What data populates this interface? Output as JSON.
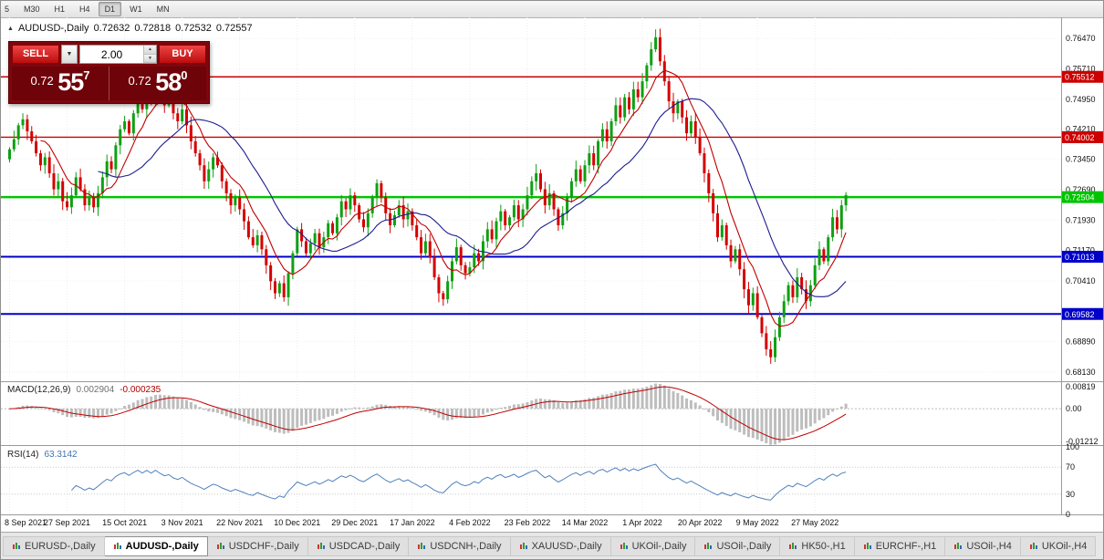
{
  "toolbar": {
    "timeframes": [
      {
        "label": "5",
        "active": false
      },
      {
        "label": "M30",
        "active": false
      },
      {
        "label": "H1",
        "active": false
      },
      {
        "label": "H4",
        "active": false
      },
      {
        "label": "D1",
        "active": true
      },
      {
        "label": "W1",
        "active": false
      },
      {
        "label": "MN",
        "active": false
      }
    ]
  },
  "header": {
    "symbol_label": "AUDUSD-,Daily",
    "open": "0.72632",
    "high": "0.72818",
    "low": "0.72532",
    "close": "0.72557"
  },
  "icons": {
    "header_arrow": "▲",
    "dropdown": "▼",
    "spin_up": "▲",
    "spin_down": "▼"
  },
  "trade_panel": {
    "sell_label": "SELL",
    "buy_label": "BUY",
    "volume": "2.00",
    "sell_price": {
      "prefix": "0.72",
      "pips": "55",
      "frac": "7"
    },
    "buy_price": {
      "prefix": "0.72",
      "pips": "58",
      "frac": "0"
    }
  },
  "tabs": [
    {
      "label": "EURUSD-,Daily",
      "active": false
    },
    {
      "label": "AUDUSD-,Daily",
      "active": true
    },
    {
      "label": "USDCHF-,Daily",
      "active": false
    },
    {
      "label": "USDCAD-,Daily",
      "active": false
    },
    {
      "label": "USDCNH-,Daily",
      "active": false
    },
    {
      "label": "XAUUSD-,Daily",
      "active": false
    },
    {
      "label": "UKOil-,Daily",
      "active": false
    },
    {
      "label": "USOil-,Daily",
      "active": false
    },
    {
      "label": "HK50-,H1",
      "active": false
    },
    {
      "label": "EURCHF-,H1",
      "active": false
    },
    {
      "label": "USOil-,H4",
      "active": false
    },
    {
      "label": "UKOil-,H4",
      "active": false
    }
  ],
  "chart_data": {
    "type": "candlestick+indicators",
    "symbol": "AUDUSD-,Daily",
    "ylim": [
      0.679,
      0.77
    ],
    "price_ticks": [
      "0.76470",
      "0.75710",
      "0.74950",
      "0.74210",
      "0.73450",
      "0.72690",
      "0.71930",
      "0.71170",
      "0.70410",
      "0.69650",
      "0.68890",
      "0.68130"
    ],
    "hlines": [
      {
        "price": 0.75512,
        "color": "#cc0000",
        "width": 1.4,
        "label": "0.75512"
      },
      {
        "price": 0.74002,
        "color": "#cc0000",
        "width": 1.4,
        "label": "0.74002"
      },
      {
        "price": 0.72504,
        "color": "#00c400",
        "width": 2.4,
        "label": "0.72504"
      },
      {
        "price": 0.71013,
        "color": "#0000c8",
        "width": 2.0,
        "label": "0.71013"
      },
      {
        "price": 0.69582,
        "color": "#0000c8",
        "width": 2.0,
        "label": "0.69582"
      }
    ],
    "x_labels": [
      "8 Sep 2021",
      "27 Sep 2021",
      "15 Oct 2021",
      "3 Nov 2021",
      "22 Nov 2021",
      "10 Dec 2021",
      "29 Dec 2021",
      "17 Jan 2022",
      "4 Feb 2022",
      "23 Feb 2022",
      "14 Mar 2022",
      "1 Apr 2022",
      "20 Apr 2022",
      "9 May 2022",
      "27 May 2022"
    ],
    "label_every": 13,
    "first_open": 0.7345,
    "closes": [
      0.737,
      0.7395,
      0.743,
      0.7445,
      0.7415,
      0.739,
      0.736,
      0.733,
      0.735,
      0.731,
      0.727,
      0.729,
      0.724,
      0.7225,
      0.7255,
      0.73,
      0.727,
      0.723,
      0.725,
      0.7225,
      0.726,
      0.73,
      0.734,
      0.732,
      0.738,
      0.742,
      0.744,
      0.741,
      0.746,
      0.75,
      0.747,
      0.752,
      0.749,
      0.7545,
      0.751,
      0.748,
      0.75,
      0.746,
      0.744,
      0.747,
      0.743,
      0.739,
      0.736,
      0.733,
      0.729,
      0.732,
      0.735,
      0.733,
      0.729,
      0.726,
      0.723,
      0.725,
      0.722,
      0.719,
      0.715,
      0.713,
      0.7155,
      0.712,
      0.708,
      0.704,
      0.701,
      0.7035,
      0.7,
      0.706,
      0.711,
      0.717,
      0.714,
      0.711,
      0.7135,
      0.716,
      0.7125,
      0.715,
      0.7185,
      0.716,
      0.72,
      0.724,
      0.722,
      0.7255,
      0.723,
      0.7195,
      0.7175,
      0.721,
      0.725,
      0.7285,
      0.725,
      0.721,
      0.718,
      0.7205,
      0.723,
      0.7195,
      0.7215,
      0.718,
      0.715,
      0.711,
      0.714,
      0.71,
      0.705,
      0.701,
      0.6995,
      0.704,
      0.709,
      0.7125,
      0.708,
      0.706,
      0.7075,
      0.711,
      0.709,
      0.714,
      0.717,
      0.7145,
      0.719,
      0.7215,
      0.718,
      0.72,
      0.723,
      0.7195,
      0.722,
      0.7255,
      0.729,
      0.731,
      0.727,
      0.723,
      0.726,
      0.722,
      0.718,
      0.721,
      0.725,
      0.729,
      0.732,
      0.729,
      0.733,
      0.736,
      0.733,
      0.739,
      0.742,
      0.739,
      0.744,
      0.748,
      0.745,
      0.75,
      0.747,
      0.752,
      0.75,
      0.754,
      0.758,
      0.762,
      0.765,
      0.759,
      0.754,
      0.749,
      0.746,
      0.749,
      0.745,
      0.741,
      0.744,
      0.74,
      0.736,
      0.731,
      0.726,
      0.721,
      0.715,
      0.718,
      0.713,
      0.709,
      0.712,
      0.707,
      0.702,
      0.698,
      0.701,
      0.695,
      0.691,
      0.687,
      0.685,
      0.69,
      0.695,
      0.699,
      0.703,
      0.7,
      0.705,
      0.702,
      0.699,
      0.703,
      0.708,
      0.712,
      0.709,
      0.715,
      0.72,
      0.717,
      0.723,
      0.72557
    ],
    "up_color": "#0ea012",
    "down_color": "#d40000",
    "ma_fast": {
      "period": 8,
      "color": "#c00000"
    },
    "ma_slow": {
      "period": 21,
      "color": "#1c1c8e"
    },
    "macd": {
      "label": "MACD(12,26,9)",
      "value": "0.002904",
      "signal_value": "-0.000235",
      "ticks": [
        "0.00819",
        "0.00",
        "-0.01212"
      ],
      "range": [
        -0.0135,
        0.0095
      ],
      "hist_color": "#bdbdbd",
      "signal_color": "#c00000"
    },
    "rsi": {
      "label": "RSI(14)",
      "value": "63.3142",
      "ticks": [
        "100",
        "70",
        "30",
        "0"
      ],
      "levels": [
        70,
        30
      ],
      "range": [
        0,
        100
      ],
      "color": "#4f81bd"
    }
  }
}
